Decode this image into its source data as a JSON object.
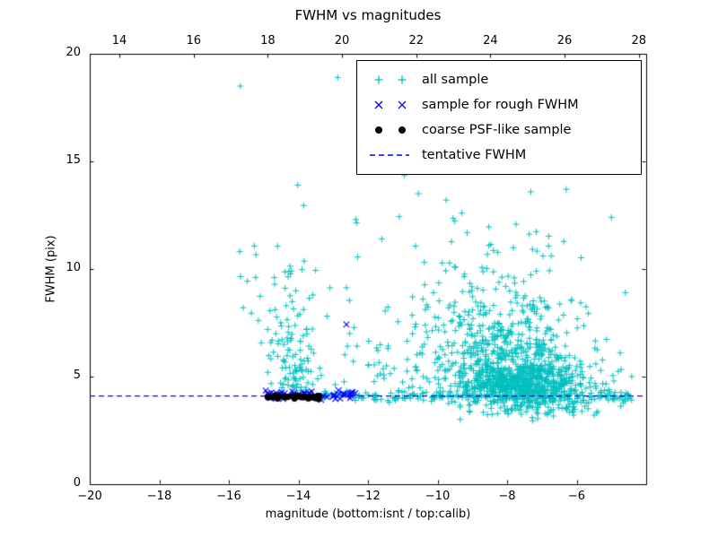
{
  "chart_data": {
    "type": "scatter",
    "title": "FWHM vs magnitudes",
    "xlabel": "magnitude (bottom:isnt / top:calib)",
    "ylabel": "FWHM (pix)",
    "xlim": [
      -20,
      -4
    ],
    "ylim": [
      0,
      20
    ],
    "top_xlim": [
      13.2,
      28.2
    ],
    "grid": false,
    "x_ticks_bottom": {
      "values": [
        -20,
        -18,
        -16,
        -14,
        -12,
        -10,
        -8,
        -6
      ],
      "labels": [
        "−20",
        "−18",
        "−16",
        "−14",
        "−12",
        "−10",
        "−8",
        "−6"
      ]
    },
    "x_ticks_top": {
      "values": [
        14,
        16,
        18,
        20,
        22,
        24,
        26,
        28
      ],
      "labels": [
        "14",
        "16",
        "18",
        "20",
        "22",
        "24",
        "26",
        "28"
      ]
    },
    "y_ticks": {
      "values": [
        0,
        5,
        10,
        15,
        20
      ],
      "labels": [
        "0",
        "5",
        "10",
        "15",
        "20"
      ]
    },
    "tentative_fwhm": 4.1,
    "colors": {
      "all_sample": "#00bfbf",
      "rough_sample": "#0000ff",
      "psf_sample": "#000000",
      "tentative_line": "#0000ff",
      "axis": "#000000"
    },
    "legend": {
      "position": "upper right",
      "items": [
        {
          "label": "all sample",
          "marker": "plus",
          "color": "#00bfbf"
        },
        {
          "label": "sample for rough FWHM",
          "marker": "x",
          "color": "#0000ff"
        },
        {
          "label": "coarse PSF-like sample",
          "marker": "dot",
          "color": "#000000"
        },
        {
          "label": "tentative FWHM",
          "marker": "dashed-line",
          "color": "#0000ff"
        }
      ]
    },
    "seed": 7,
    "series": [
      {
        "name": "all sample",
        "marker": "plus",
        "color": "#00bfbf",
        "clusters": [
          {
            "n": 520,
            "x": {
              "dist": "normal",
              "mu": -7.5,
              "sigma": 0.85,
              "min": -11.5,
              "max": -4.4
            },
            "y": {
              "dist": "normal",
              "mu": 4.7,
              "sigma": 0.55,
              "min": 3.3,
              "max": 6.5
            }
          },
          {
            "n": 420,
            "x": {
              "dist": "normal",
              "mu": -7.8,
              "sigma": 1.0,
              "min": -11.5,
              "max": -4.4
            },
            "y": {
              "dist": "halfnormal",
              "base": 4.3,
              "sigma": 2.2,
              "max": 14.6
            }
          },
          {
            "n": 220,
            "x": {
              "dist": "normal",
              "mu": -8.8,
              "sigma": 1.5,
              "min": -11.8,
              "max": -4.4
            },
            "y": {
              "dist": "halfnormal",
              "base": 4.4,
              "sigma": 3.2,
              "max": 14.6
            }
          },
          {
            "n": 90,
            "x": {
              "dist": "normal",
              "mu": -7.0,
              "sigma": 1.4,
              "min": -10.5,
              "max": -4.4
            },
            "y": {
              "dist": "normal",
              "mu": 3.6,
              "sigma": 0.33,
              "min": 2.7,
              "max": 4.05
            }
          },
          {
            "n": 210,
            "x": {
              "dist": "uniform",
              "min": -13.3,
              "max": -4.4
            },
            "y": {
              "dist": "normal",
              "mu": 4.12,
              "sigma": 0.14
            }
          },
          {
            "n": 120,
            "x": {
              "dist": "normal",
              "mu": -14.15,
              "sigma": 0.38,
              "min": -15.2,
              "max": -13.3
            },
            "y": {
              "dist": "halfnormal",
              "base": 4.35,
              "sigma": 2.4,
              "max": 13.2
            }
          },
          {
            "n": 30,
            "x": {
              "dist": "uniform",
              "min": -13.2,
              "max": -11.2
            },
            "y": {
              "dist": "halfnormal",
              "base": 4.6,
              "sigma": 2.8,
              "max": 12.5
            }
          },
          {
            "n": 10,
            "x": {
              "dist": "uniform",
              "min": -15.8,
              "max": -15.0
            },
            "y": {
              "dist": "uniform",
              "min": 7.5,
              "max": 11.2
            }
          }
        ],
        "points": [
          [
            -15.67,
            18.5
          ],
          [
            -12.87,
            18.9
          ],
          [
            -14.02,
            13.9
          ],
          [
            -13.85,
            12.95
          ],
          [
            -12.35,
            12.3
          ],
          [
            -11.6,
            11.4
          ],
          [
            -10.95,
            14.35
          ],
          [
            -10.55,
            13.5
          ],
          [
            -9.75,
            13.2
          ],
          [
            -9.3,
            12.6
          ],
          [
            -6.3,
            13.7
          ],
          [
            -5.0,
            12.4
          ],
          [
            -4.6,
            8.9
          ],
          [
            -4.75,
            6.1
          ]
        ]
      },
      {
        "name": "sample for rough FWHM",
        "marker": "x",
        "color": "#0000ff",
        "clusters": [
          {
            "n": 58,
            "x": {
              "dist": "uniform",
              "min": -15.05,
              "max": -12.35
            },
            "y": {
              "dist": "normal",
              "mu": 4.14,
              "sigma": 0.1
            }
          }
        ],
        "points": [
          [
            -12.62,
            7.42
          ]
        ]
      },
      {
        "name": "coarse PSF-like sample",
        "marker": "dot",
        "color": "#000000",
        "clusters": [
          {
            "n": 44,
            "x": {
              "dist": "uniform",
              "min": -14.9,
              "max": -13.33
            },
            "y": {
              "dist": "normal",
              "mu": 4.04,
              "sigma": 0.045
            }
          }
        ],
        "points": []
      }
    ]
  }
}
